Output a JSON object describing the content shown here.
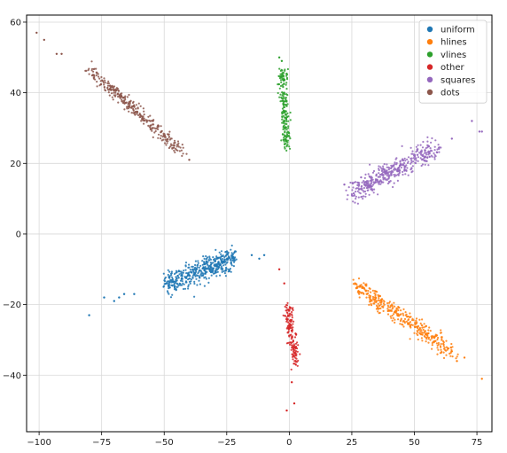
{
  "chart_data": {
    "type": "scatter",
    "xlim": [
      -105,
      81
    ],
    "ylim": [
      -56,
      62
    ],
    "xticks": [
      -100,
      -75,
      -50,
      -25,
      0,
      25,
      50,
      75
    ],
    "yticks": [
      -40,
      -20,
      0,
      20,
      40,
      60
    ],
    "xtick_labels": [
      "−100",
      "−75",
      "−50",
      "−25",
      "0",
      "25",
      "50",
      "75"
    ],
    "ytick_labels": [
      "−40",
      "−20",
      "0",
      "20",
      "40",
      "60"
    ],
    "grid": true,
    "legend_position": "top-right",
    "series": [
      {
        "name": "uniform",
        "color": "#1f77b4",
        "start": [
          -52,
          -15
        ],
        "end": [
          -20,
          -6
        ],
        "spread": 1.6,
        "count": 460,
        "outliers": [
          [
            -62,
            -17
          ],
          [
            -68,
            -18
          ],
          [
            -70,
            -19
          ],
          [
            -80,
            -23
          ],
          [
            -74,
            -18
          ],
          [
            -66,
            -17
          ],
          [
            -15,
            -6
          ],
          [
            -12,
            -7
          ],
          [
            -10,
            -6
          ]
        ]
      },
      {
        "name": "hlines",
        "color": "#ff7f0e",
        "start": [
          24,
          -13
        ],
        "end": [
          68,
          -35
        ],
        "spread": 1.3,
        "count": 380,
        "outliers": [
          [
            77,
            -41
          ],
          [
            67,
            -36
          ],
          [
            70,
            -35
          ]
        ]
      },
      {
        "name": "vlines",
        "color": "#2ca02c",
        "start": [
          -3,
          48
        ],
        "end": [
          -1,
          23
        ],
        "spread": 0.8,
        "count": 200,
        "outliers": [
          [
            -4,
            50
          ],
          [
            -3,
            49
          ]
        ]
      },
      {
        "name": "other",
        "color": "#d62728",
        "start": [
          -1,
          -19
        ],
        "end": [
          3,
          -38
        ],
        "spread": 0.9,
        "count": 160,
        "outliers": [
          [
            -4,
            -10
          ],
          [
            -1,
            -50
          ],
          [
            2,
            -48
          ],
          [
            1,
            -42
          ],
          [
            -2,
            -14
          ]
        ]
      },
      {
        "name": "squares",
        "color": "#9467bd",
        "start": [
          23,
          11
        ],
        "end": [
          61,
          25
        ],
        "spread": 1.5,
        "count": 420,
        "outliers": [
          [
            73,
            32
          ],
          [
            77,
            29
          ],
          [
            76,
            29
          ],
          [
            65,
            27
          ],
          [
            22,
            14
          ]
        ]
      },
      {
        "name": "dots",
        "color": "#8c564b",
        "start": [
          -82,
          48
        ],
        "end": [
          -41,
          22
        ],
        "spread": 0.9,
        "count": 320,
        "outliers": [
          [
            -101,
            57
          ],
          [
            -98,
            55
          ],
          [
            -93,
            51
          ],
          [
            -91,
            51
          ],
          [
            -40,
            21
          ]
        ]
      }
    ]
  }
}
